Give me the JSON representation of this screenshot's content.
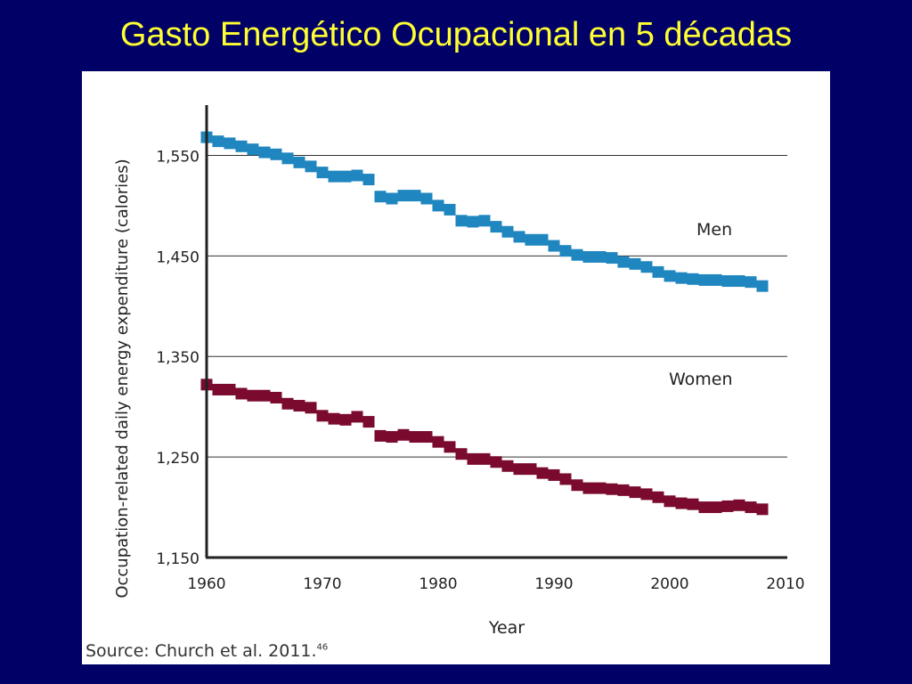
{
  "slide": {
    "title": "Gasto Energético Ocupacional en 5 décadas"
  },
  "source": {
    "text": "Source: Church et al. 2011.",
    "ref": "46"
  },
  "chart_data": {
    "type": "scatter",
    "title": "",
    "xlabel": "Year",
    "ylabel": "Occupation-related daily energy expenditure (calories)",
    "xlim": [
      1960,
      2010
    ],
    "ylim": [
      1150,
      1600
    ],
    "x_ticks": [
      1960,
      1970,
      1980,
      1990,
      2000,
      2010
    ],
    "y_ticks": [
      1150,
      1250,
      1350,
      1450,
      1550
    ],
    "y_tick_labels": [
      "1,150",
      "1,250",
      "1,350",
      "1,450",
      "1,550"
    ],
    "grid": "horizontal",
    "marker": "square",
    "series": [
      {
        "name": "Men",
        "color": "#1f86bf",
        "x": [
          1960,
          1961,
          1962,
          1963,
          1964,
          1965,
          1966,
          1967,
          1968,
          1969,
          1970,
          1971,
          1972,
          1973,
          1974,
          1975,
          1976,
          1977,
          1978,
          1979,
          1980,
          1981,
          1982,
          1983,
          1984,
          1985,
          1986,
          1987,
          1988,
          1989,
          1990,
          1991,
          1992,
          1993,
          1994,
          1995,
          1996,
          1997,
          1998,
          1999,
          2000,
          2001,
          2002,
          2003,
          2004,
          2005,
          2006,
          2007,
          2008
        ],
        "y": [
          1568,
          1564,
          1562,
          1559,
          1556,
          1553,
          1551,
          1547,
          1543,
          1539,
          1533,
          1529,
          1529,
          1530,
          1526,
          1509,
          1507,
          1510,
          1510,
          1507,
          1500,
          1496,
          1485,
          1484,
          1485,
          1479,
          1474,
          1469,
          1466,
          1466,
          1460,
          1455,
          1451,
          1449,
          1449,
          1448,
          1444,
          1442,
          1439,
          1434,
          1430,
          1428,
          1427,
          1426,
          1426,
          1425,
          1425,
          1424,
          1420
        ]
      },
      {
        "name": "Women",
        "color": "#7a0a2e",
        "x": [
          1960,
          1961,
          1962,
          1963,
          1964,
          1965,
          1966,
          1967,
          1968,
          1969,
          1970,
          1971,
          1972,
          1973,
          1974,
          1975,
          1976,
          1977,
          1978,
          1979,
          1980,
          1981,
          1982,
          1983,
          1984,
          1985,
          1986,
          1987,
          1988,
          1989,
          1990,
          1991,
          1992,
          1993,
          1994,
          1995,
          1996,
          1997,
          1998,
          1999,
          2000,
          2001,
          2002,
          2003,
          2004,
          2005,
          2006,
          2007,
          2008
        ],
        "y": [
          1322,
          1317,
          1317,
          1313,
          1311,
          1311,
          1309,
          1303,
          1301,
          1299,
          1291,
          1288,
          1287,
          1290,
          1285,
          1271,
          1270,
          1272,
          1270,
          1270,
          1265,
          1260,
          1253,
          1248,
          1248,
          1245,
          1241,
          1238,
          1238,
          1234,
          1232,
          1228,
          1222,
          1219,
          1219,
          1218,
          1217,
          1215,
          1213,
          1210,
          1206,
          1204,
          1203,
          1200,
          1200,
          1201,
          1202,
          1200,
          1198
        ]
      }
    ]
  }
}
